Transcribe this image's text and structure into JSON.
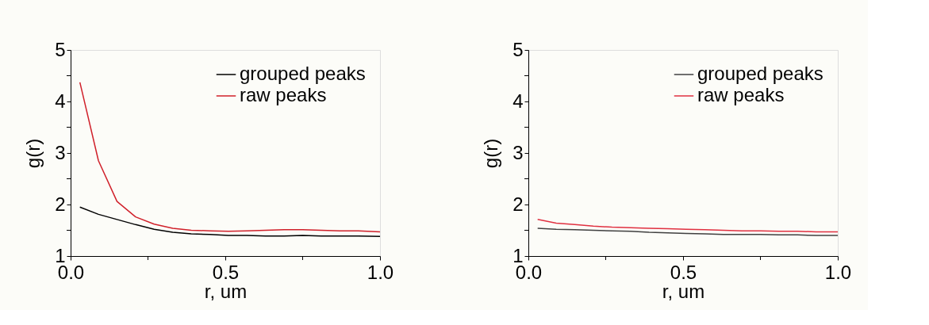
{
  "chart_data": [
    {
      "type": "line",
      "xlabel": "r, um",
      "ylabel": "g(r)",
      "legend": "top right",
      "grid": false,
      "marker": "none",
      "line_style": "solid",
      "xlim": [
        0,
        1
      ],
      "ylim": [
        1,
        5
      ],
      "xticks": [
        {
          "value": 0,
          "label": "0.0"
        },
        {
          "value": 0.25,
          "label": null
        },
        0.5,
        {
          "value": 0.75,
          "label": null
        },
        {
          "value": 1,
          "label": "1.0"
        }
      ],
      "yticks": [
        1,
        {
          "value": 1.5,
          "label": null
        },
        2,
        {
          "value": 2.5,
          "label": null
        },
        3,
        {
          "value": 3.5,
          "label": null
        },
        4,
        {
          "value": 4.5,
          "label": null
        },
        5
      ],
      "x": [
        0.03,
        0.09,
        0.15,
        0.21,
        0.27,
        0.33,
        0.39,
        0.45,
        0.51,
        0.57,
        0.63,
        0.69,
        0.75,
        0.81,
        0.87,
        0.93,
        1.0
      ],
      "series": [
        {
          "name": "grouped peaks",
          "color": "#000000",
          "values": [
            1.95,
            1.81,
            1.71,
            1.61,
            1.52,
            1.46,
            1.43,
            1.42,
            1.4,
            1.4,
            1.39,
            1.39,
            1.4,
            1.39,
            1.39,
            1.39,
            1.38
          ]
        },
        {
          "name": "raw peaks",
          "color": "#d0202a",
          "values": [
            4.37,
            2.85,
            2.06,
            1.76,
            1.62,
            1.54,
            1.5,
            1.49,
            1.48,
            1.49,
            1.5,
            1.51,
            1.51,
            1.5,
            1.49,
            1.49,
            1.47
          ]
        }
      ]
    },
    {
      "type": "line",
      "xlabel": "r, um",
      "ylabel": "g(r)",
      "legend": "top right",
      "grid": false,
      "marker": "none",
      "line_style": "solid",
      "xlim": [
        0,
        1
      ],
      "ylim": [
        1,
        5
      ],
      "xticks": [
        {
          "value": 0,
          "label": "0.0"
        },
        {
          "value": 0.25,
          "label": null
        },
        0.5,
        {
          "value": 0.75,
          "label": null
        },
        {
          "value": 1,
          "label": "1.0"
        }
      ],
      "yticks": [
        1,
        {
          "value": 1.5,
          "label": null
        },
        2,
        {
          "value": 2.5,
          "label": null
        },
        3,
        {
          "value": 3.5,
          "label": null
        },
        4,
        {
          "value": 4.5,
          "label": null
        },
        5
      ],
      "x": [
        0.03,
        0.09,
        0.15,
        0.21,
        0.27,
        0.33,
        0.39,
        0.45,
        0.51,
        0.57,
        0.63,
        0.69,
        0.75,
        0.81,
        0.87,
        0.93,
        1.0
      ],
      "series": [
        {
          "name": "grouped peaks",
          "color": "#404040",
          "values": [
            1.54,
            1.52,
            1.51,
            1.5,
            1.49,
            1.48,
            1.46,
            1.45,
            1.44,
            1.43,
            1.42,
            1.42,
            1.42,
            1.41,
            1.41,
            1.4,
            1.4
          ]
        },
        {
          "name": "raw peaks",
          "color": "#e03040",
          "values": [
            1.71,
            1.64,
            1.61,
            1.58,
            1.56,
            1.55,
            1.54,
            1.53,
            1.52,
            1.51,
            1.5,
            1.49,
            1.49,
            1.48,
            1.48,
            1.47,
            1.47
          ]
        }
      ]
    }
  ]
}
